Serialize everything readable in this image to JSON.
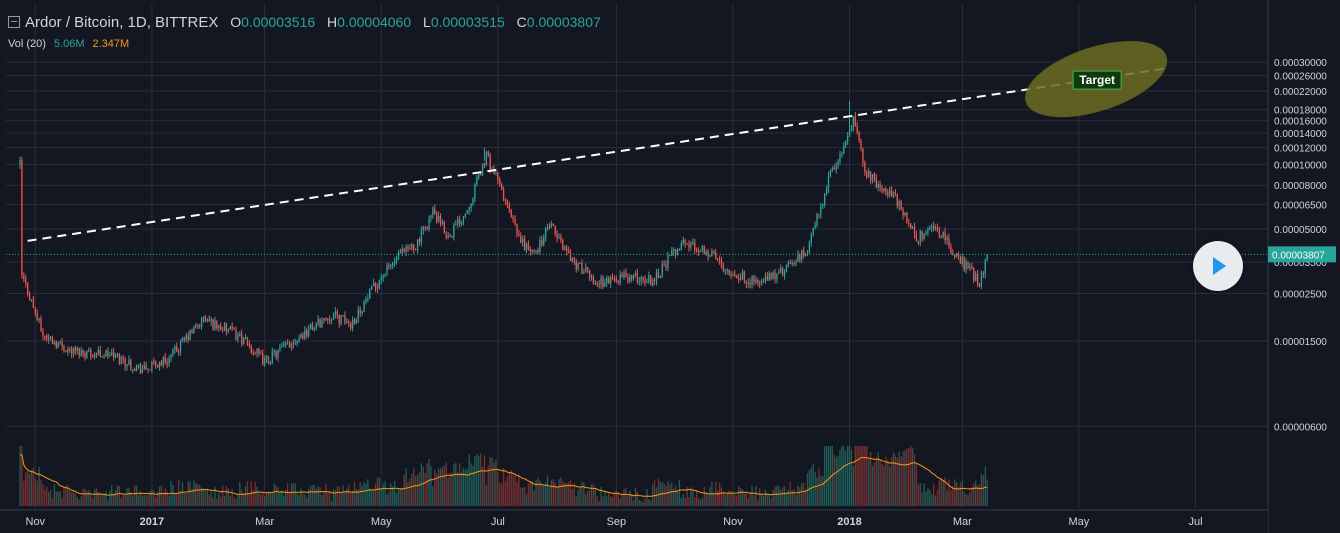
{
  "header": {
    "symbol": "Ardor / Bitcoin, 1D, BITTREX",
    "open_label": "O",
    "open": "0.00003516",
    "high_label": "H",
    "high": "0.00004060",
    "low_label": "L",
    "low": "0.00003515",
    "close_label": "C",
    "close": "0.00003807",
    "vol_label": "Vol (20)",
    "vol_value": "5.06M",
    "vol_ma": "2.347M"
  },
  "colors": {
    "background": "#131722",
    "up": "#26a69a",
    "down": "#ef5350",
    "grid": "#2a2e39",
    "axis_text": "#d1d4dc",
    "last_price": "#26a69a",
    "volume_ma": "#ff9800",
    "target_ellipse": "#6b6b1e"
  },
  "annotation": {
    "target_label": "Target",
    "price_tag": "0.00003807"
  },
  "chart_data": {
    "type": "candlestick",
    "exchange": "BITTREX",
    "interval": "1D",
    "y_scale": "log",
    "y_ticks": [
      "0.00030000",
      "0.00026000",
      "0.00022000",
      "0.00018000",
      "0.00016000",
      "0.00014000",
      "0.00012000",
      "0.00010000",
      "0.00008000",
      "0.00006500",
      "0.00005000",
      "0.00003500",
      "0.00002500",
      "0.00001500",
      "0.00000600"
    ],
    "x_ticks": [
      "Nov",
      "2017",
      "Mar",
      "May",
      "Jul",
      "Sep",
      "Nov",
      "2018",
      "Mar",
      "May",
      "Jul"
    ],
    "last_price": 3.807e-05,
    "price_path": [
      [
        "2016-10-24",
        0.0001
      ],
      [
        "2016-10-25",
        3e-05
      ],
      [
        "2016-10-28",
        2.6e-05
      ],
      [
        "2016-11-05",
        1.6e-05
      ],
      [
        "2016-11-20",
        1.35e-05
      ],
      [
        "2016-12-10",
        1.3e-05
      ],
      [
        "2016-12-28",
        1.1e-05
      ],
      [
        "2017-01-10",
        1.25e-05
      ],
      [
        "2017-01-28",
        1.9e-05
      ],
      [
        "2017-02-15",
        1.6e-05
      ],
      [
        "2017-03-01",
        1.2e-05
      ],
      [
        "2017-03-20",
        1.6e-05
      ],
      [
        "2017-04-05",
        2e-05
      ],
      [
        "2017-04-15",
        1.8e-05
      ],
      [
        "2017-05-01",
        3e-05
      ],
      [
        "2017-05-10",
        3.7e-05
      ],
      [
        "2017-05-20",
        4.3e-05
      ],
      [
        "2017-05-28",
        6e-05
      ],
      [
        "2017-06-05",
        4.6e-05
      ],
      [
        "2017-06-15",
        6.2e-05
      ],
      [
        "2017-06-25",
        0.00011
      ],
      [
        "2017-07-03",
        7.5e-05
      ],
      [
        "2017-07-12",
        4.5e-05
      ],
      [
        "2017-07-20",
        3.8e-05
      ],
      [
        "2017-07-28",
        5.2e-05
      ],
      [
        "2017-08-10",
        3.5e-05
      ],
      [
        "2017-08-22",
        2.8e-05
      ],
      [
        "2017-09-05",
        3e-05
      ],
      [
        "2017-09-20",
        2.9e-05
      ],
      [
        "2017-10-05",
        4.3e-05
      ],
      [
        "2017-10-18",
        4e-05
      ],
      [
        "2017-11-01",
        3.1e-05
      ],
      [
        "2017-11-15",
        2.8e-05
      ],
      [
        "2017-11-28",
        3.2e-05
      ],
      [
        "2017-12-10",
        4e-05
      ],
      [
        "2017-12-22",
        9e-05
      ],
      [
        "2017-12-30",
        0.000125
      ],
      [
        "2018-01-03",
        0.00016
      ],
      [
        "2018-01-10",
        9e-05
      ],
      [
        "2018-01-25",
        7e-05
      ],
      [
        "2018-02-05",
        4.5e-05
      ],
      [
        "2018-02-15",
        5.2e-05
      ],
      [
        "2018-02-25",
        3.8e-05
      ],
      [
        "2018-03-05",
        3.2e-05
      ],
      [
        "2018-03-10",
        2.8e-05
      ],
      [
        "2018-03-14",
        3.807e-05
      ]
    ],
    "high_marks": [
      [
        "2017-06-24",
        0.00012
      ],
      [
        "2018-01-01",
        0.000198
      ]
    ],
    "trendline": {
      "style": "dashed",
      "color": "#ffffff",
      "from": [
        "2016-10-28",
        4.4e-05
      ],
      "to": [
        "2018-06-15",
        0.00028
      ]
    },
    "target_zone": {
      "label": "Target",
      "center": [
        "2018-05-10",
        0.00025
      ]
    },
    "volume": {
      "series_name": "Vol (20)",
      "latest": "5.06M",
      "ma": "2.347M"
    }
  }
}
